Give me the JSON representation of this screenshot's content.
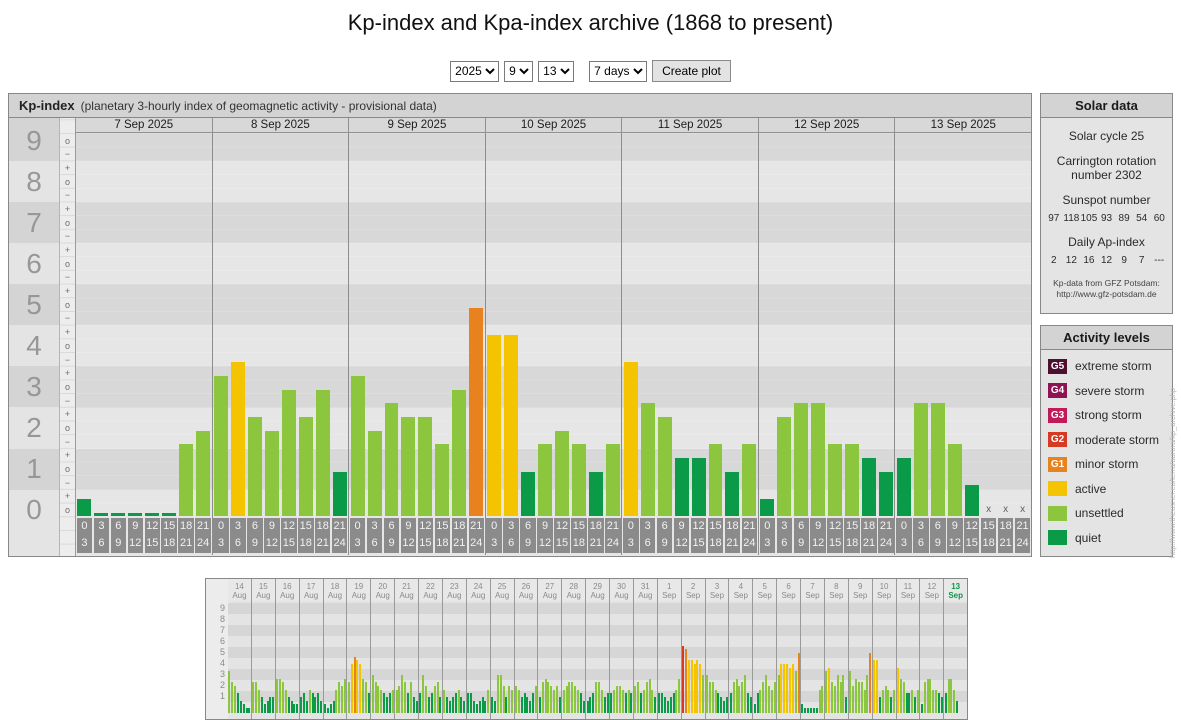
{
  "page": {
    "title": "Kp-index and Kpa-index archive (1868 to present)"
  },
  "controls": {
    "year": "2025",
    "month": "9",
    "day": "13",
    "range": "7 days",
    "submit_label": "Create plot"
  },
  "colors": {
    "quiet": "#0a9a48",
    "unsettled": "#8cc63e",
    "active": "#f5c400",
    "g1": "#e8821e",
    "g2": "#d63a22",
    "g3": "#c11a58",
    "g4": "#8e1353",
    "g5": "#4d1030"
  },
  "chart_data": {
    "main": {
      "type": "bar",
      "title": "Kp-index",
      "subtitle": "(planetary 3-hourly index of geomagnetic activity - provisional data)",
      "ylabel": "Kp",
      "ylim": [
        0,
        9.33
      ],
      "missing_marker": "x",
      "y_numbers": [
        "9",
        "8",
        "7",
        "6",
        "5",
        "4",
        "3",
        "2",
        "1",
        "0"
      ],
      "hours_start": [
        "0",
        "3",
        "6",
        "9",
        "12",
        "15",
        "18",
        "21"
      ],
      "hours_end": [
        "3",
        "6",
        "9",
        "12",
        "15",
        "18",
        "21",
        "24"
      ],
      "days": [
        {
          "date": "7 Sep 2025",
          "values": [
            0.33,
            0,
            0,
            0,
            0,
            0,
            1.67,
            2
          ]
        },
        {
          "date": "8 Sep 2025",
          "values": [
            3.33,
            3.67,
            2.33,
            2,
            3,
            2.33,
            3,
            1
          ]
        },
        {
          "date": "9 Sep 2025",
          "values": [
            3.33,
            2,
            2.67,
            2.33,
            2.33,
            1.67,
            3,
            5
          ]
        },
        {
          "date": "10 Sep 2025",
          "values": [
            4.33,
            4.33,
            1,
            1.67,
            2,
            1.67,
            1,
            1.67
          ]
        },
        {
          "date": "11 Sep 2025",
          "values": [
            3.67,
            2.67,
            2.33,
            1.33,
            1.33,
            1.67,
            1,
            1.67
          ]
        },
        {
          "date": "12 Sep 2025",
          "values": [
            0.33,
            2.33,
            2.67,
            2.67,
            1.67,
            1.67,
            1.33,
            1
          ]
        },
        {
          "date": "13 Sep 2025",
          "values": [
            1.33,
            2.67,
            2.67,
            1.67,
            0.67,
            null,
            null,
            null
          ]
        }
      ]
    },
    "mini": {
      "type": "bar",
      "y_labels": [
        "9",
        "8",
        "7",
        "6",
        "5",
        "4",
        "3",
        "2",
        "1"
      ],
      "days": [
        {
          "date": [
            "14",
            "Aug"
          ],
          "values": [
            3.33,
            2.33,
            2,
            1.33,
            0.67,
            0.33,
            0,
            0
          ]
        },
        {
          "date": [
            "15",
            "Aug"
          ],
          "values": [
            2.33,
            2.33,
            1.67,
            1,
            0.33,
            0.67,
            1,
            1
          ]
        },
        {
          "date": [
            "16",
            "Aug"
          ],
          "values": [
            2.67,
            2.67,
            2.33,
            1.67,
            1,
            0.67,
            0.33,
            0.33
          ]
        },
        {
          "date": [
            "17",
            "Aug"
          ],
          "values": [
            1,
            1.33,
            0.67,
            1.67,
            1.33,
            1,
            1.33,
            0.67
          ]
        },
        {
          "date": [
            "18",
            "Aug"
          ],
          "values": [
            0.33,
            0,
            0.33,
            0.67,
            1.67,
            2.33,
            2,
            2.67
          ]
        },
        {
          "date": [
            "19",
            "Aug"
          ],
          "values": [
            2.33,
            4,
            4.67,
            4.33,
            4,
            2.67,
            2.33,
            1.33
          ]
        },
        {
          "date": [
            "20",
            "Aug"
          ],
          "values": [
            3,
            2.33,
            2,
            1.67,
            1.33,
            1,
            1.33,
            1.67
          ]
        },
        {
          "date": [
            "21",
            "Aug"
          ],
          "values": [
            1.67,
            2,
            3,
            2.33,
            1.33,
            2.33,
            1,
            0.67
          ]
        },
        {
          "date": [
            "22",
            "Aug"
          ],
          "values": [
            1.33,
            3,
            2,
            1,
            1.33,
            2,
            2.33,
            1
          ]
        },
        {
          "date": [
            "23",
            "Aug"
          ],
          "values": [
            1.67,
            1,
            0.67,
            1,
            1.33,
            1.67,
            1,
            0.67
          ]
        },
        {
          "date": [
            "24",
            "Aug"
          ],
          "values": [
            1.33,
            1.33,
            0.67,
            0.33,
            0.67,
            1,
            0.67,
            1.67
          ]
        },
        {
          "date": [
            "25",
            "Aug"
          ],
          "values": [
            1,
            0.67,
            3,
            3,
            2,
            1,
            2,
            1.67
          ]
        },
        {
          "date": [
            "26",
            "Aug"
          ],
          "values": [
            2,
            1.67,
            1,
            1.33,
            1,
            0.67,
            1.33,
            2
          ]
        },
        {
          "date": [
            "27",
            "Aug"
          ],
          "values": [
            1,
            2.33,
            2.67,
            2.33,
            2,
            1.67,
            2,
            1
          ]
        },
        {
          "date": [
            "28",
            "Aug"
          ],
          "values": [
            1.67,
            2,
            2.33,
            2.33,
            2,
            1.67,
            1.33,
            0.67
          ]
        },
        {
          "date": [
            "29",
            "Aug"
          ],
          "values": [
            0.67,
            1,
            1.33,
            2.33,
            2.33,
            1.67,
            1,
            1.33
          ]
        },
        {
          "date": [
            "30",
            "Aug"
          ],
          "values": [
            1.33,
            1.67,
            2,
            2,
            1.67,
            1.33,
            1.67,
            1.33
          ]
        },
        {
          "date": [
            "31",
            "Aug"
          ],
          "values": [
            2,
            2.33,
            1.33,
            1.67,
            2.33,
            2.67,
            1.67,
            1
          ]
        },
        {
          "date": [
            "1",
            "Sep"
          ],
          "values": [
            1.33,
            1.33,
            1,
            0.67,
            1,
            1.33,
            1.67,
            2.67
          ]
        },
        {
          "date": [
            "2",
            "Sep"
          ],
          "values": [
            5.67,
            5.33,
            4.33,
            4.33,
            4,
            4.33,
            4,
            3
          ]
        },
        {
          "date": [
            "3",
            "Sep"
          ],
          "values": [
            3,
            2.33,
            2.33,
            1.67,
            1.33,
            1,
            0.67,
            1
          ]
        },
        {
          "date": [
            "4",
            "Sep"
          ],
          "values": [
            1.33,
            2.33,
            2.67,
            2,
            2.33,
            3,
            1.33,
            1
          ]
        },
        {
          "date": [
            "5",
            "Sep"
          ],
          "values": [
            0.33,
            1.33,
            1.67,
            2.33,
            3,
            2,
            1.67,
            2.33
          ]
        },
        {
          "date": [
            "6",
            "Sep"
          ],
          "values": [
            3,
            4,
            4,
            4,
            3.67,
            4,
            3.33,
            5
          ]
        },
        {
          "date": [
            "7",
            "Sep"
          ],
          "values": [
            0.33,
            0,
            0,
            0,
            0,
            0,
            1.67,
            2
          ]
        },
        {
          "date": [
            "8",
            "Sep"
          ],
          "values": [
            3.33,
            3.67,
            2.33,
            2,
            3,
            2.33,
            3,
            1
          ]
        },
        {
          "date": [
            "9",
            "Sep"
          ],
          "values": [
            3.33,
            2,
            2.67,
            2.33,
            2.33,
            1.67,
            3,
            5
          ]
        },
        {
          "date": [
            "10",
            "Sep"
          ],
          "values": [
            4.33,
            4.33,
            1,
            1.67,
            2,
            1.67,
            1,
            1.67
          ]
        },
        {
          "date": [
            "11",
            "Sep"
          ],
          "values": [
            3.67,
            2.67,
            2.33,
            1.33,
            1.33,
            1.67,
            1,
            1.67
          ]
        },
        {
          "date": [
            "12",
            "Sep"
          ],
          "values": [
            0.33,
            2.33,
            2.67,
            2.67,
            1.67,
            1.67,
            1.33,
            1
          ]
        },
        {
          "date": [
            "13",
            "Sep"
          ],
          "values": [
            1.33,
            2.67,
            2.67,
            1.67,
            0.67,
            null,
            null,
            null
          ]
        }
      ]
    }
  },
  "solar_data": {
    "title": "Solar data",
    "solar_cycle": "Solar cycle 25",
    "carrington": "Carrington rotation number 2302",
    "sunspot_label": "Sunspot number",
    "sunspot_values": [
      "97",
      "118",
      "105",
      "93",
      "89",
      "54",
      "60"
    ],
    "ap_label": "Daily Ap-index",
    "ap_values": [
      "2",
      "12",
      "16",
      "12",
      "9",
      "7",
      "---"
    ],
    "source_line1": "Kp-data from GFZ Potsdam:",
    "source_line2": "http://www.gfz-potsdam.de"
  },
  "activity_levels": {
    "title": "Activity levels",
    "items": [
      {
        "code": "G5",
        "label": "extreme storm",
        "color_key": "g5"
      },
      {
        "code": "G4",
        "label": "severe storm",
        "color_key": "g4"
      },
      {
        "code": "G3",
        "label": "strong storm",
        "color_key": "g3"
      },
      {
        "code": "G2",
        "label": "moderate storm",
        "color_key": "g2"
      },
      {
        "code": "G1",
        "label": "minor storm",
        "color_key": "g1"
      },
      {
        "code": "",
        "label": "active",
        "color_key": "active"
      },
      {
        "code": "",
        "label": "unsettled",
        "color_key": "unsettled"
      },
      {
        "code": "",
        "label": "quiet",
        "color_key": "quiet"
      }
    ]
  },
  "watermark": "http://www.theusner.eu/terra/aurora/kp_archive.php"
}
